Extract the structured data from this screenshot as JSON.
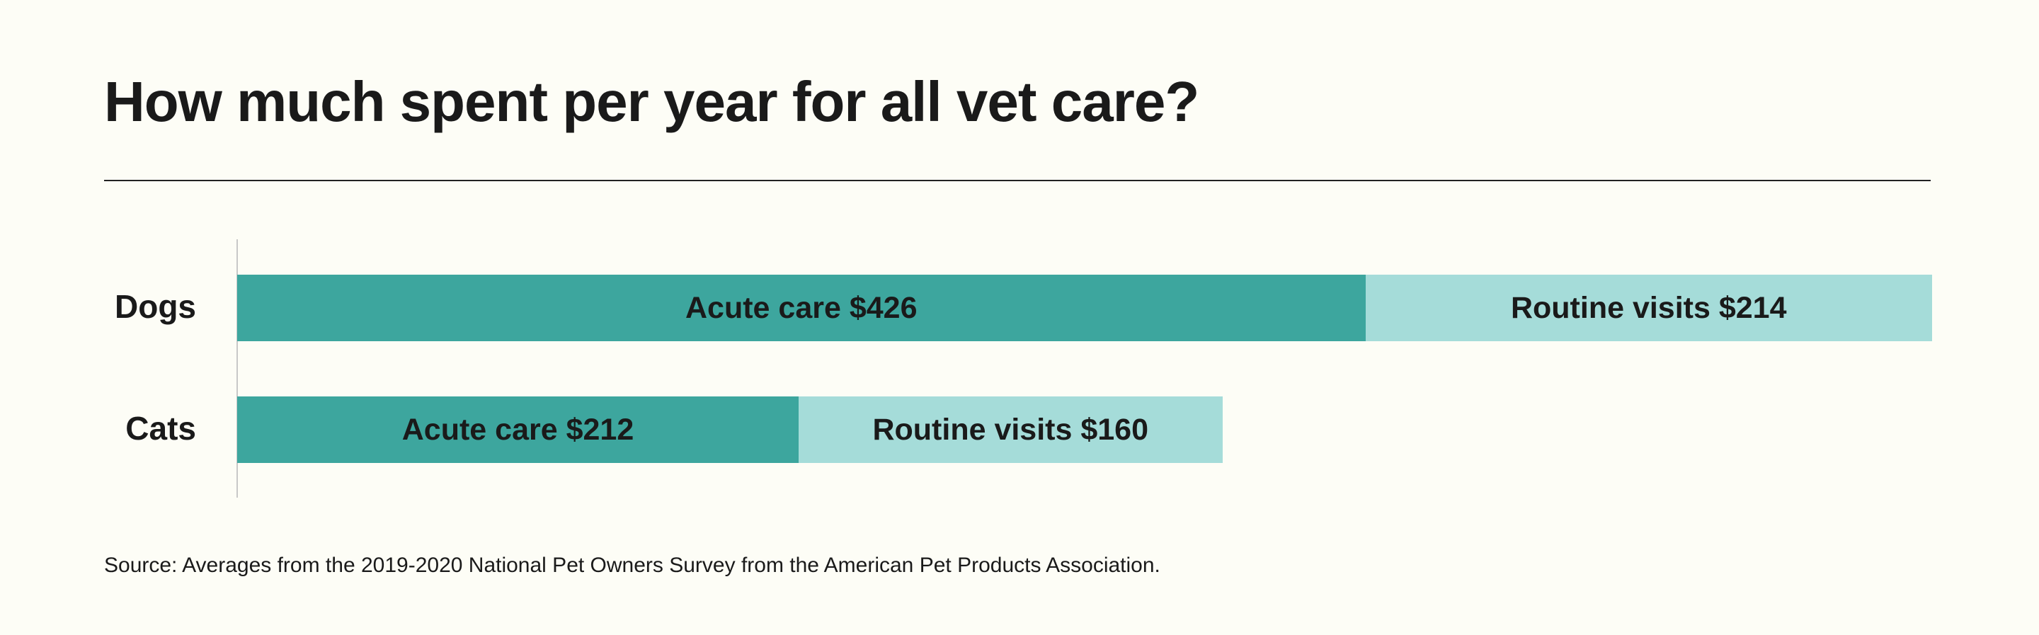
{
  "chart_data": {
    "type": "bar",
    "orientation": "horizontal",
    "stacked": true,
    "title": "How much spent per year for all vet care?",
    "categories": [
      "Dogs",
      "Cats"
    ],
    "series": [
      {
        "name": "Acute care",
        "values": [
          426,
          212
        ],
        "color": "#3da69e",
        "labels": [
          "Acute care $426",
          "Acute care $212"
        ]
      },
      {
        "name": "Routine visits",
        "values": [
          214,
          160
        ],
        "color": "#a5dcd9",
        "labels": [
          "Routine visits $214",
          "Routine visits $160"
        ]
      }
    ],
    "xlim": [
      0,
      640
    ],
    "grid": false,
    "source": "Source: Averages from the 2019-2020 National Pet Owners Survey from the American Pet Products Association."
  }
}
